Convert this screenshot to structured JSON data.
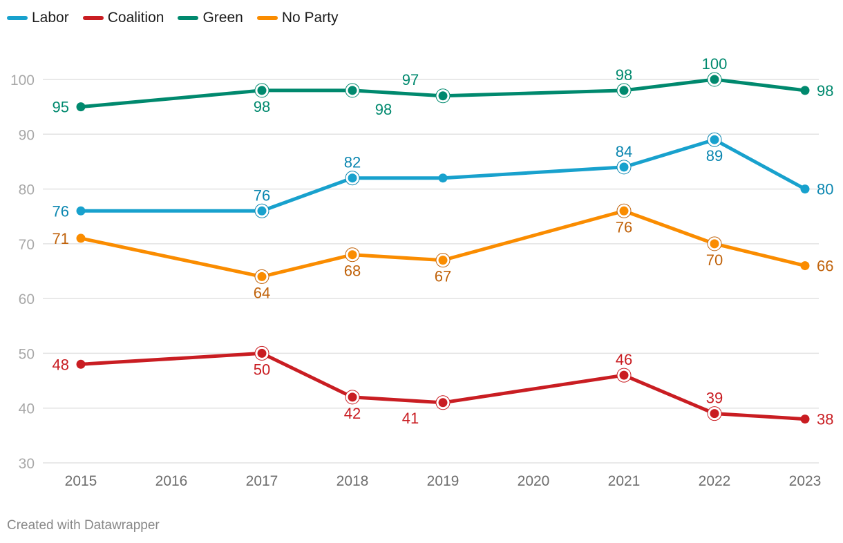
{
  "chart_data": {
    "type": "line",
    "title": "",
    "xlabel": "",
    "ylabel": "",
    "x_ticks": [
      "2015",
      "2016",
      "2017",
      "2018",
      "2019",
      "2020",
      "2021",
      "2022",
      "2023"
    ],
    "y_ticks": [
      30,
      40,
      50,
      60,
      70,
      80,
      90,
      100
    ],
    "ylim": [
      30,
      100
    ],
    "grid": true,
    "legend_position": "top-left",
    "series": [
      {
        "name": "Green",
        "color": "#00896e",
        "label_color": "#00896e",
        "points": [
          {
            "x": "2015",
            "y": 95,
            "label": "left",
            "halo": false
          },
          {
            "x": "2017",
            "y": 98,
            "label": "below",
            "halo": true
          },
          {
            "x": "2018",
            "y": 98,
            "label": "below-right",
            "halo": true
          },
          {
            "x": "2019",
            "y": 97,
            "label": "above-left",
            "halo": true
          },
          {
            "x": "2021",
            "y": 98,
            "label": "above",
            "halo": true
          },
          {
            "x": "2022",
            "y": 100,
            "label": "above",
            "halo": true
          },
          {
            "x": "2023",
            "y": 98,
            "label": "right",
            "halo": false
          }
        ]
      },
      {
        "name": "Labor",
        "color": "#18a1cd",
        "label_color": "#0a86b0",
        "points": [
          {
            "x": "2015",
            "y": 76,
            "label": "left",
            "halo": false
          },
          {
            "x": "2017",
            "y": 76,
            "label": "above",
            "halo": true
          },
          {
            "x": "2018",
            "y": 82,
            "label": "above",
            "halo": true
          },
          {
            "x": "2019",
            "y": 82,
            "label": "none",
            "halo": false
          },
          {
            "x": "2021",
            "y": 84,
            "label": "above",
            "halo": true
          },
          {
            "x": "2022",
            "y": 89,
            "label": "below",
            "halo": true
          },
          {
            "x": "2023",
            "y": 80,
            "label": "right",
            "halo": false
          }
        ]
      },
      {
        "name": "No Party",
        "color": "#fa8c00",
        "label_color": "#c0620a",
        "points": [
          {
            "x": "2015",
            "y": 71,
            "label": "left",
            "halo": false
          },
          {
            "x": "2017",
            "y": 64,
            "label": "below",
            "halo": true
          },
          {
            "x": "2018",
            "y": 68,
            "label": "below",
            "halo": true
          },
          {
            "x": "2019",
            "y": 67,
            "label": "below",
            "halo": true
          },
          {
            "x": "2021",
            "y": 76,
            "label": "below",
            "halo": true
          },
          {
            "x": "2022",
            "y": 70,
            "label": "below",
            "halo": true
          },
          {
            "x": "2023",
            "y": 66,
            "label": "right",
            "halo": false
          }
        ]
      },
      {
        "name": "Coalition",
        "color": "#c91d22",
        "label_color": "#c91d22",
        "points": [
          {
            "x": "2015",
            "y": 48,
            "label": "left",
            "halo": false
          },
          {
            "x": "2017",
            "y": 50,
            "label": "below",
            "halo": true
          },
          {
            "x": "2018",
            "y": 42,
            "label": "below",
            "halo": true
          },
          {
            "x": "2019",
            "y": 41,
            "label": "below-left",
            "halo": true
          },
          {
            "x": "2021",
            "y": 46,
            "label": "above",
            "halo": true
          },
          {
            "x": "2022",
            "y": 39,
            "label": "above",
            "halo": true
          },
          {
            "x": "2023",
            "y": 38,
            "label": "right",
            "halo": false
          }
        ]
      }
    ]
  },
  "legend": [
    {
      "name": "Labor",
      "color": "#18a1cd"
    },
    {
      "name": "Coalition",
      "color": "#c91d22"
    },
    {
      "name": "Green",
      "color": "#00896e"
    },
    {
      "name": "No Party",
      "color": "#fa8c00"
    }
  ],
  "footer": "Created with Datawrapper"
}
